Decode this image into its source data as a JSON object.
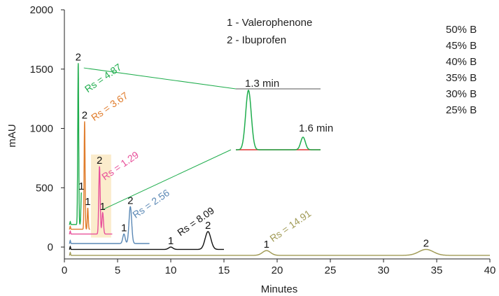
{
  "chart_data": {
    "type": "line",
    "xlabel": "Minutes",
    "ylabel": "mAU",
    "xlim": [
      0,
      40
    ],
    "ylim": [
      -100,
      2000
    ],
    "x_ticks": [
      0,
      5,
      10,
      15,
      20,
      25,
      30,
      35,
      40
    ],
    "y_ticks": [
      0,
      500,
      1000,
      1500,
      2000
    ],
    "compounds": [
      "1 - Valerophenone",
      "2 - Ibuprofen"
    ],
    "legend_position": "top-right",
    "series": [
      {
        "name": "50% B",
        "color": "#1fad4d",
        "baseline": 190,
        "end": 1.6,
        "peaks": [
          {
            "id": "1",
            "t": 1.6,
            "h": 460
          },
          {
            "id": "2",
            "t": 1.3,
            "h": 1550
          }
        ],
        "resolution": {
          "label": "Rs = 4.87",
          "t": 2.2,
          "v": 1300
        }
      },
      {
        "name": "45% B",
        "color": "#e07b2a",
        "baseline": 150,
        "end": 2.4,
        "peaks": [
          {
            "id": "1",
            "t": 2.2,
            "h": 330
          },
          {
            "id": "2",
            "t": 1.9,
            "h": 1060
          }
        ],
        "resolution": {
          "label": "Rs = 3.67",
          "t": 2.8,
          "v": 1060
        }
      },
      {
        "name": "40% B",
        "color": "#e8509a",
        "baseline": 110,
        "end": 4.5,
        "peaks": [
          {
            "id": "1",
            "t": 3.6,
            "h": 290
          },
          {
            "id": "2",
            "t": 3.3,
            "h": 680
          }
        ],
        "resolution": {
          "label": "Rs = 1.29",
          "t": 3.8,
          "v": 560
        }
      },
      {
        "name": "35% B",
        "color": "#5a88b5",
        "baseline": 30,
        "end": 8.0,
        "peaks": [
          {
            "id": "1",
            "t": 5.6,
            "h": 110
          },
          {
            "id": "2",
            "t": 6.2,
            "h": 340
          }
        ],
        "resolution": {
          "label": "Rs = 2.56",
          "t": 6.7,
          "v": 240
        }
      },
      {
        "name": "30% B",
        "color": "#111111",
        "baseline": -20,
        "end": 15.0,
        "peaks": [
          {
            "id": "1",
            "t": 10.0,
            "h": 0
          },
          {
            "id": "2",
            "t": 13.5,
            "h": 130
          }
        ],
        "resolution": {
          "label": "Rs = 8.09",
          "t": 10.9,
          "v": 90
        }
      },
      {
        "name": "25% B",
        "color": "#a09a55",
        "baseline": -70,
        "end": 40.0,
        "peaks": [
          {
            "id": "1",
            "t": 19.0,
            "h": -30
          },
          {
            "id": "2",
            "t": 34.0,
            "h": -20
          }
        ],
        "resolution": {
          "label": "Rs = 14.91",
          "t": 19.6,
          "v": 40
        }
      }
    ],
    "highlight_region": {
      "x": [
        2.5,
        4.4
      ],
      "y": [
        80,
        780
      ],
      "color": "#fbeccc"
    },
    "inset": {
      "source_peak_time": 1.3,
      "annotations": [
        "1.3 min",
        "1.6 min"
      ],
      "trace_color": "#1fad4d",
      "baseline_color": "#e03030"
    }
  }
}
